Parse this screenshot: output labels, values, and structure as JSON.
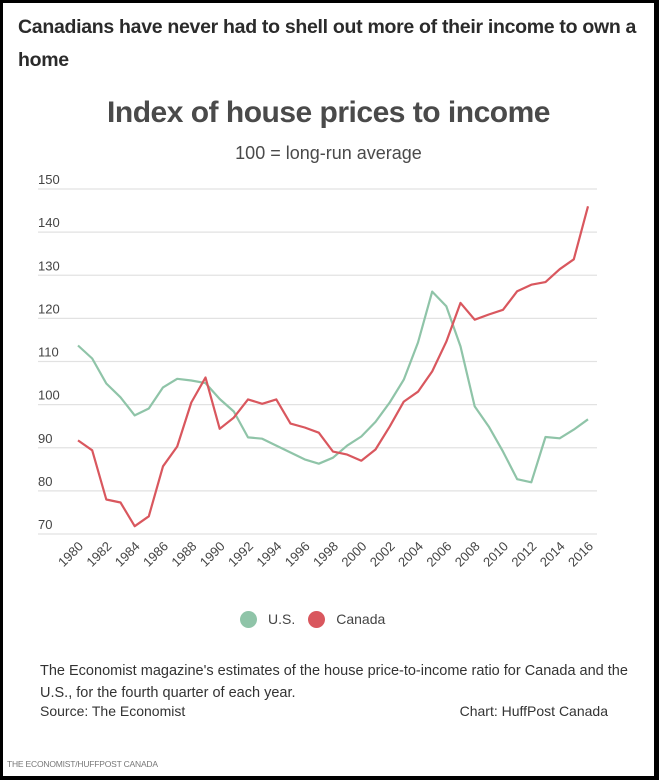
{
  "headline": "Canadians have never had to shell out more of their income to own a home",
  "note": "The Economist magazine's estimates of the house price-to-income ratio for Canada and the U.S., for the fourth quarter of each year.",
  "source": "Source: The Economist",
  "credit": "Chart: HuffPost Canada",
  "footer": "THE ECONOMIST/HUFFPOST CANADA",
  "chart_data": {
    "type": "line",
    "title": "Index of house prices to income",
    "subtitle": "100 = long-run average",
    "xlabel": "",
    "ylabel": "",
    "ylim": [
      70,
      150
    ],
    "yticks": [
      70,
      80,
      90,
      100,
      110,
      120,
      130,
      140,
      150
    ],
    "xlim": [
      1980,
      2016
    ],
    "xticks": [
      1980,
      1982,
      1984,
      1986,
      1988,
      1990,
      1992,
      1994,
      1996,
      1998,
      2000,
      2002,
      2004,
      2006,
      2008,
      2010,
      2012,
      2014,
      2016
    ],
    "grid": true,
    "legend": "bottom-center",
    "x": [
      1980,
      1981,
      1982,
      1983,
      1984,
      1985,
      1986,
      1987,
      1988,
      1989,
      1990,
      1991,
      1992,
      1993,
      1994,
      1995,
      1996,
      1997,
      1998,
      1999,
      2000,
      2001,
      2002,
      2003,
      2004,
      2005,
      2006,
      2007,
      2008,
      2009,
      2010,
      2011,
      2012,
      2013,
      2014,
      2015,
      2016
    ],
    "series": [
      {
        "name": "U.S.",
        "color": "#8fc4a8",
        "values": [
          113.7,
          110.7,
          104.9,
          101.7,
          97.5,
          99.1,
          104.0,
          106.0,
          105.6,
          105.0,
          101.3,
          98.4,
          92.4,
          92.1,
          90.5,
          88.9,
          87.3,
          86.3,
          87.7,
          90.5,
          92.6,
          96.0,
          100.5,
          105.8,
          114.4,
          126.2,
          122.8,
          113.5,
          99.6,
          94.9,
          89.1,
          82.7,
          82.0,
          92.5,
          92.2,
          94.2,
          96.6
        ]
      },
      {
        "name": "Canada",
        "color": "#d9575e",
        "values": [
          91.7,
          89.4,
          78.0,
          77.3,
          71.8,
          74.1,
          85.7,
          90.3,
          100.5,
          106.3,
          94.4,
          97.0,
          101.2,
          100.2,
          101.2,
          95.6,
          94.7,
          93.5,
          89.1,
          88.4,
          87.0,
          89.6,
          94.9,
          100.7,
          103.0,
          107.7,
          114.6,
          123.6,
          119.7,
          120.9,
          122.0,
          126.3,
          127.8,
          128.4,
          131.4,
          133.7,
          146.0
        ]
      }
    ]
  }
}
